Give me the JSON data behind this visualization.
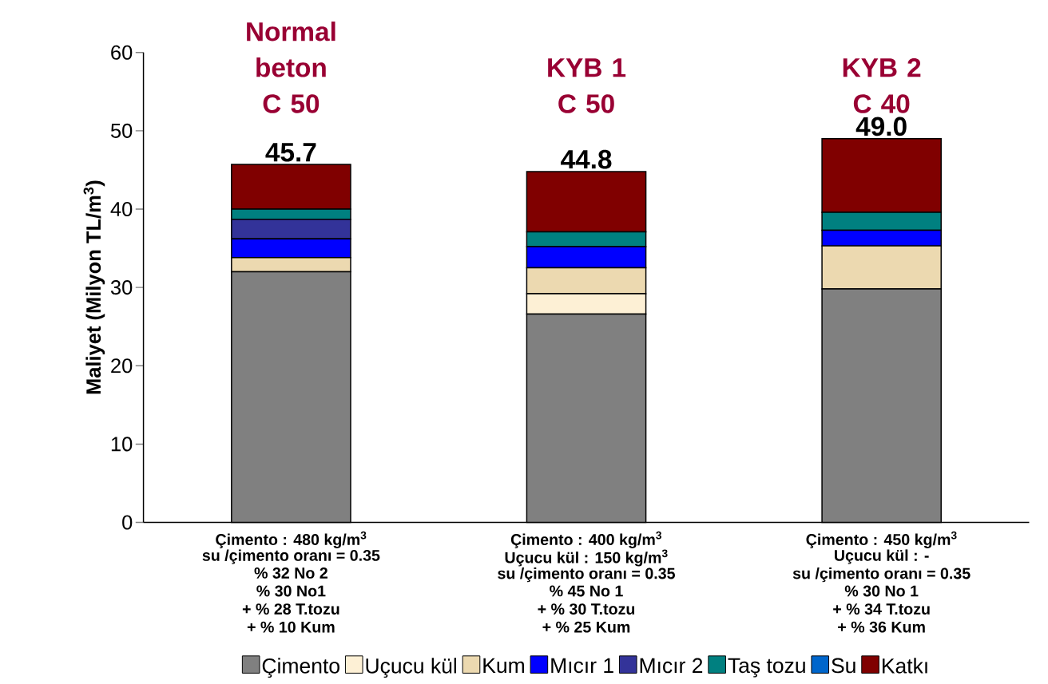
{
  "chart_data": {
    "type": "bar",
    "stacked": true,
    "categories": [
      "Normal beton C 50",
      "KYB 1 C 50",
      "KYB 2 C 40"
    ],
    "ylabel": "Maliyet (Milyon TL/m$^{3}$)",
    "ylim": [
      0,
      60
    ],
    "yticks": [
      0,
      10,
      20,
      30,
      40,
      50,
      60
    ],
    "series": [
      {
        "name": "Çimento",
        "color": "#808080",
        "values": [
          32.0,
          26.6,
          29.8
        ]
      },
      {
        "name": "Uçucu kül",
        "color": "#fdf0d5",
        "values": [
          null,
          2.6,
          null
        ]
      },
      {
        "name": "Kum",
        "color": "#ecd9b0",
        "values": [
          1.8,
          3.3,
          5.5
        ]
      },
      {
        "name": "Mıcır 1",
        "color": "#0000ff",
        "values": [
          2.4,
          2.7,
          2.0
        ]
      },
      {
        "name": "Mıcır 2",
        "color": "#333399",
        "values": [
          2.5,
          null,
          null
        ]
      },
      {
        "name": "Taş tozu",
        "color": "#008080",
        "values": [
          1.3,
          1.9,
          2.3
        ]
      },
      {
        "name": "Su",
        "color": "#0066cc",
        "values": [
          null,
          null,
          null
        ]
      },
      {
        "name": "Katkı",
        "color": "#800000",
        "values": [
          5.7,
          7.7,
          9.4
        ]
      }
    ],
    "totals": [
      "45.7",
      "44.8",
      "49.0"
    ],
    "legend": "bottom",
    "annotations": [
      "Çimento : 480 kg/m$^{3}$",
      "su /çimento oranı = 0.35",
      "% 32 No 2",
      "% 30 No1",
      "+ % 28 T.tozu",
      "+ % 10 Kum",
      "Çimento : 400 kg/m$^{3}$",
      "Uçucu kül : 150 kg/m$^{3}$",
      "su /çimento oranı = 0.35",
      "% 45 No 1",
      "+ % 30 T.tozu",
      "+ % 25 Kum",
      "Çimento : 450 kg/m$^{3}$",
      "Uçucu kül :  -",
      "su /çimento oranı = 0.35",
      "% 30 No 1",
      "+ % 34 T.tozu",
      "+ % 36 Kum"
    ]
  }
}
